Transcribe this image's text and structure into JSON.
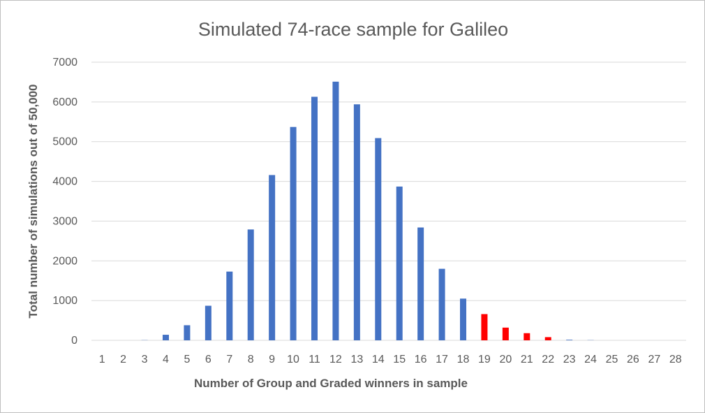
{
  "chart_data": {
    "type": "bar",
    "title": "Simulated 74-race sample for Galileo",
    "xlabel": "Number of Group and Graded winners in sample",
    "ylabel": "Total number of simulations out of 50,000",
    "ylim": [
      0,
      7000
    ],
    "yticks": [
      "0",
      "1000",
      "2000",
      "3000",
      "4000",
      "5000",
      "6000",
      "7000"
    ],
    "grid": true,
    "legend": "none",
    "categories": [
      "1",
      "2",
      "3",
      "4",
      "5",
      "6",
      "7",
      "8",
      "9",
      "10",
      "11",
      "12",
      "13",
      "14",
      "15",
      "16",
      "17",
      "18",
      "19",
      "20",
      "21",
      "22",
      "23",
      "24",
      "25",
      "26",
      "27",
      "28"
    ],
    "values": [
      0,
      0,
      5,
      140,
      380,
      870,
      1730,
      2790,
      4160,
      5370,
      6130,
      6510,
      5940,
      5090,
      3870,
      2840,
      1800,
      1050,
      660,
      320,
      180,
      80,
      15,
      5,
      0,
      0,
      0,
      0
    ],
    "colors": [
      "#4472c4",
      "#4472c4",
      "#4472c4",
      "#4472c4",
      "#4472c4",
      "#4472c4",
      "#4472c4",
      "#4472c4",
      "#4472c4",
      "#4472c4",
      "#4472c4",
      "#4472c4",
      "#4472c4",
      "#4472c4",
      "#4472c4",
      "#4472c4",
      "#4472c4",
      "#4472c4",
      "#ff0000",
      "#ff0000",
      "#ff0000",
      "#ff0000",
      "#4472c4",
      "#4472c4",
      "#4472c4",
      "#4472c4",
      "#4472c4",
      "#4472c4"
    ]
  }
}
